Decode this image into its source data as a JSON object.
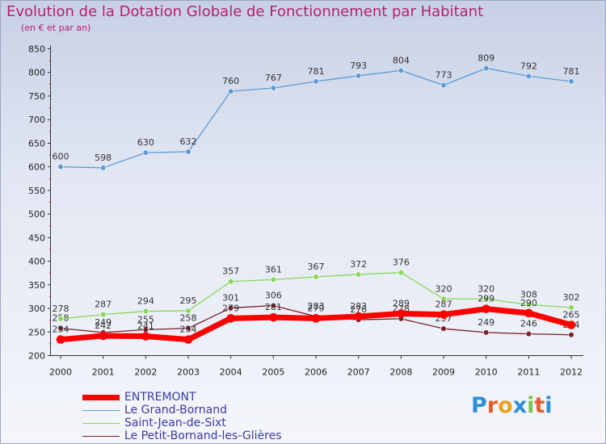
{
  "title": "Evolution de la Dotation Globale de Fonctionnement par Habitant",
  "subtitle": "(en € et par an)",
  "logo_text": "Proxiti",
  "chart_data": {
    "type": "line",
    "x": [
      "2000",
      "2001",
      "2002",
      "2003",
      "2004",
      "2005",
      "2006",
      "2007",
      "2008",
      "2009",
      "2010",
      "2011",
      "2012"
    ],
    "ylim": [
      200,
      850
    ],
    "yticks": [
      200,
      250,
      300,
      350,
      400,
      450,
      500,
      550,
      600,
      650,
      700,
      750,
      800,
      850
    ],
    "grid": false,
    "legend_position": "bottom-left",
    "series": [
      {
        "name": "ENTREMONT",
        "color": "#ff0000",
        "values": [
          234,
          242,
          241,
          234,
          279,
          281,
          279,
          283,
          289,
          287,
          299,
          290,
          265
        ]
      },
      {
        "name": "Le Grand-Bornand",
        "color": "#5c9bd3",
        "values": [
          600,
          598,
          630,
          632,
          760,
          767,
          781,
          793,
          804,
          773,
          809,
          792,
          781
        ]
      },
      {
        "name": "Saint-Jean-de-Sixt",
        "color": "#88d858",
        "values": [
          278,
          287,
          294,
          295,
          357,
          361,
          367,
          372,
          376,
          320,
          320,
          308,
          302
        ]
      },
      {
        "name": "Le Petit-Bornand-les-Glières",
        "color": "#7a1e2a",
        "values": [
          258,
          249,
          255,
          258,
          301,
          306,
          283,
          276,
          278,
          257,
          249,
          246,
          244
        ]
      }
    ]
  }
}
